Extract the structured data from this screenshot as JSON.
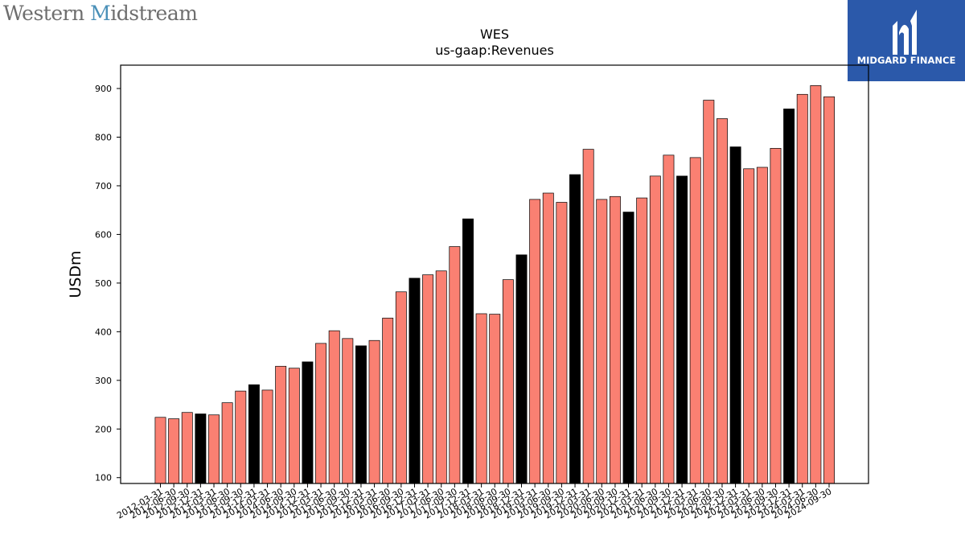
{
  "header": {
    "company_logo_text_prefix": "Western ",
    "company_logo_text_m": "M",
    "company_logo_text_rest": "idstream",
    "brand_logo_text": "MIDGARD FINANCE"
  },
  "colors": {
    "bar_regular": "#fa8072",
    "bar_highlight": "#000000",
    "brand_blue": "#2b59aa"
  },
  "chart_data": {
    "type": "bar",
    "title": "WES",
    "subtitle": "us-gaap:Revenues",
    "ylabel": "USDm",
    "xlabel": "",
    "ylim": [
      88,
      948
    ],
    "yticks": [
      100,
      200,
      300,
      400,
      500,
      600,
      700,
      800,
      900
    ],
    "grid": false,
    "categories": [
      "2012-03-31",
      "2012-06-30",
      "2012-09-30",
      "2012-12-31",
      "2013-03-31",
      "2013-06-30",
      "2013-09-30",
      "2013-12-31",
      "2014-03-31",
      "2014-06-30",
      "2014-09-30",
      "2014-12-31",
      "2015-03-31",
      "2015-06-30",
      "2015-09-30",
      "2015-12-31",
      "2016-03-31",
      "2016-06-30",
      "2016-09-30",
      "2016-12-31",
      "2017-03-31",
      "2017-06-30",
      "2017-09-30",
      "2017-12-31",
      "2018-03-31",
      "2018-06-30",
      "2018-09-30",
      "2018-12-31",
      "2019-03-31",
      "2019-06-30",
      "2019-09-30",
      "2019-12-31",
      "2020-03-31",
      "2020-06-30",
      "2020-09-30",
      "2020-12-31",
      "2021-03-31",
      "2021-06-30",
      "2021-09-30",
      "2021-12-31",
      "2022-03-31",
      "2022-06-30",
      "2022-09-30",
      "2022-12-31",
      "2023-03-31",
      "2023-06-30",
      "2023-09-30",
      "2023-12-31",
      "2024-03-31",
      "2024-06-30",
      "2024-09-30"
    ],
    "values": [
      224,
      221,
      234,
      231,
      229,
      254,
      278,
      291,
      280,
      329,
      325,
      338,
      376,
      402,
      386,
      371,
      382,
      428,
      482,
      510,
      517,
      525,
      575,
      632,
      437,
      436,
      507,
      558,
      672,
      685,
      666,
      723,
      775,
      672,
      678,
      646,
      675,
      720,
      763,
      720,
      758,
      876,
      838,
      780,
      735,
      738,
      777,
      858,
      888,
      906,
      883
    ],
    "highlight": [
      false,
      false,
      false,
      true,
      false,
      false,
      false,
      true,
      false,
      false,
      false,
      true,
      false,
      false,
      false,
      true,
      false,
      false,
      false,
      true,
      false,
      false,
      false,
      true,
      false,
      false,
      false,
      true,
      false,
      false,
      false,
      true,
      false,
      false,
      false,
      true,
      false,
      false,
      false,
      true,
      false,
      false,
      false,
      true,
      false,
      false,
      false,
      true,
      false,
      false,
      false
    ]
  }
}
